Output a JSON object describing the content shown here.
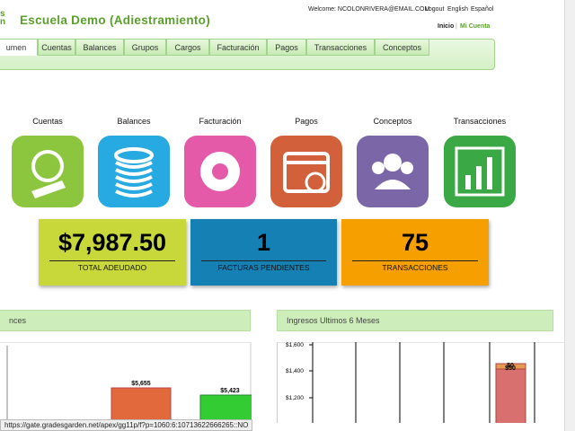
{
  "header": {
    "logo": [
      "s",
      "n"
    ],
    "title": "Escuela Demo (Adiestramiento)",
    "welcome": "Welcome: NCOLONRIVERA@EMAIL.COM",
    "links": [
      "Logout",
      "English",
      "Español"
    ],
    "home": "Inicio",
    "separator": "|",
    "account": "Mi Cuenta"
  },
  "nav": {
    "tabs": [
      "umen",
      "Cuentas",
      "Balances",
      "Grupos",
      "Cargos",
      "Facturación",
      "Pagos",
      "Transacciones",
      "Conceptos"
    ]
  },
  "shortcuts": [
    "Cuentas",
    "Balances",
    "Facturación",
    "Pagos",
    "Conceptos",
    "Transacciones"
  ],
  "stats": [
    {
      "value": "$7,987.50",
      "label": "TOTAL ADEUDADO"
    },
    {
      "value": "1",
      "label": "FACTURAS PENDIENTES"
    },
    {
      "value": "75",
      "label": "TRANSACCIONES"
    }
  ],
  "panels": [
    {
      "title": "nces",
      "bar_labels": [
        "$5,655",
        "$5,423"
      ]
    },
    {
      "title": "Ingresos Ultimos 6 Meses",
      "axis_labels": [
        "$1,600",
        "$1,400",
        "$1,200"
      ],
      "bar_labels": [
        "$0",
        "$50"
      ]
    }
  ],
  "status_bar": "https://gate.gradesgarden.net/apex/gg11p/f?p=1060:6:10713622666265::NO"
}
